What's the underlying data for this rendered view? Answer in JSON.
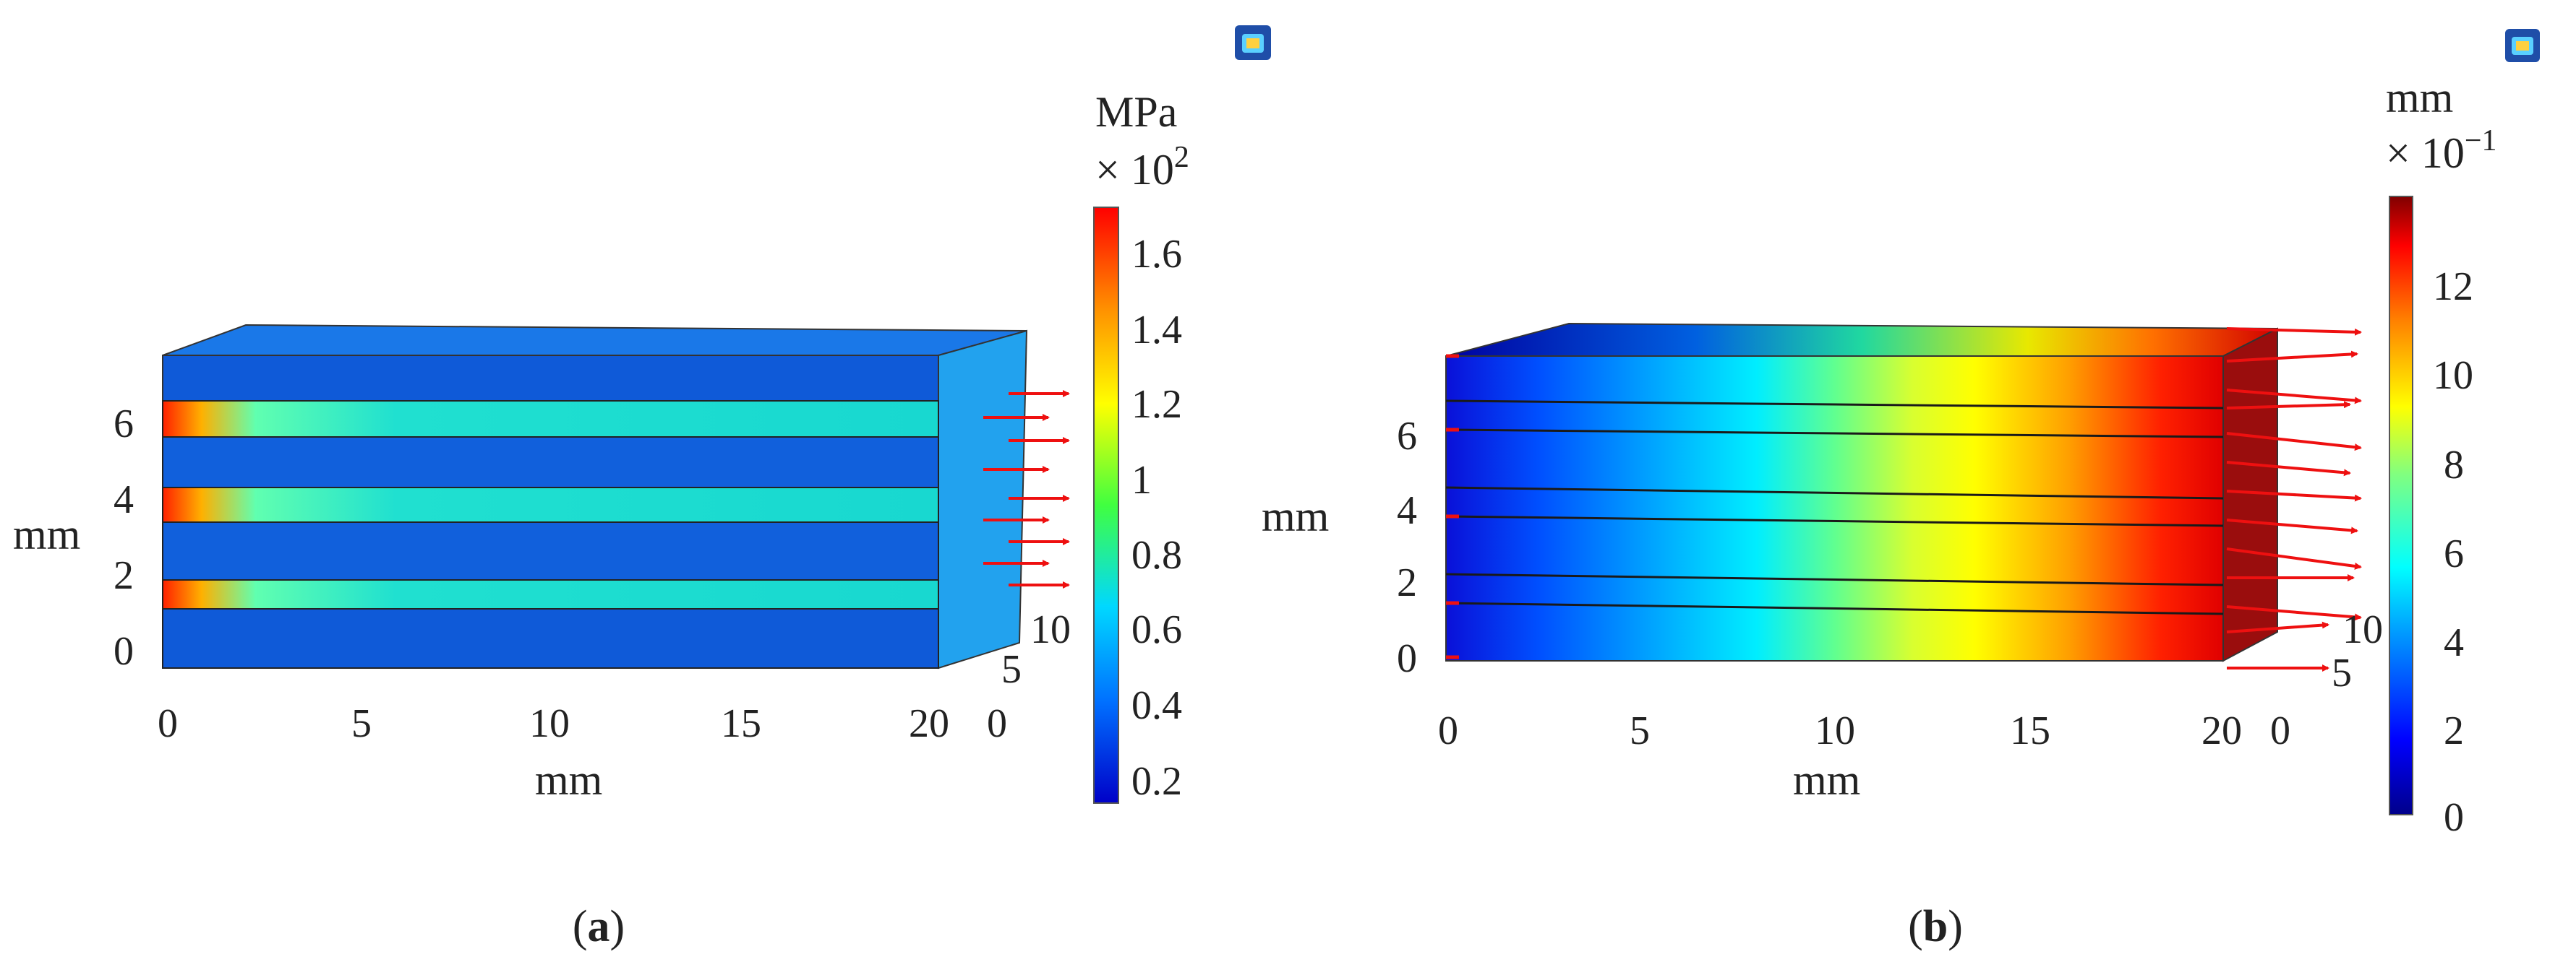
{
  "panel_a": {
    "caption": "(a)",
    "caption_letter": "a",
    "x_axis": {
      "label": "mm",
      "ticks": [
        "0",
        "5",
        "10",
        "15",
        "20"
      ]
    },
    "y_axis": {
      "label": "mm",
      "ticks": [
        "0",
        "2",
        "4",
        "6"
      ]
    },
    "z_axis": {
      "ticks": [
        "0",
        "5",
        "10"
      ]
    },
    "colorbar": {
      "unit": "MPa",
      "scale_base": "× 10",
      "scale_exp": "2",
      "ticks": [
        "1.6",
        "1.4",
        "1.2",
        "1",
        "0.8",
        "0.6",
        "0.4",
        "0.2"
      ],
      "range": [
        0.18,
        1.7
      ],
      "colors": [
        "#0000c8",
        "#0070ff",
        "#00d8ff",
        "#40ff40",
        "#ffff00",
        "#ff9000",
        "#ff0000"
      ]
    },
    "view_icon": "3d-view-icon"
  },
  "panel_b": {
    "caption": "(b)",
    "caption_letter": "b",
    "x_axis": {
      "label": "mm",
      "ticks": [
        "0",
        "5",
        "10",
        "15",
        "20"
      ]
    },
    "y_axis": {
      "label": "mm",
      "ticks": [
        "0",
        "2",
        "4",
        "6"
      ]
    },
    "z_axis": {
      "ticks": [
        "0",
        "5",
        "10"
      ]
    },
    "colorbar": {
      "unit": "mm",
      "scale_base": "× 10",
      "scale_exp": "−1",
      "ticks": [
        "12",
        "10",
        "8",
        "6",
        "4",
        "2",
        "0"
      ],
      "range": [
        0,
        13.8
      ],
      "colors": [
        "#00008a",
        "#0000ff",
        "#00a0ff",
        "#00ffff",
        "#80ff80",
        "#ffff00",
        "#ff8000",
        "#ff0000",
        "#800000"
      ]
    },
    "view_icon": "3d-view-icon"
  }
}
